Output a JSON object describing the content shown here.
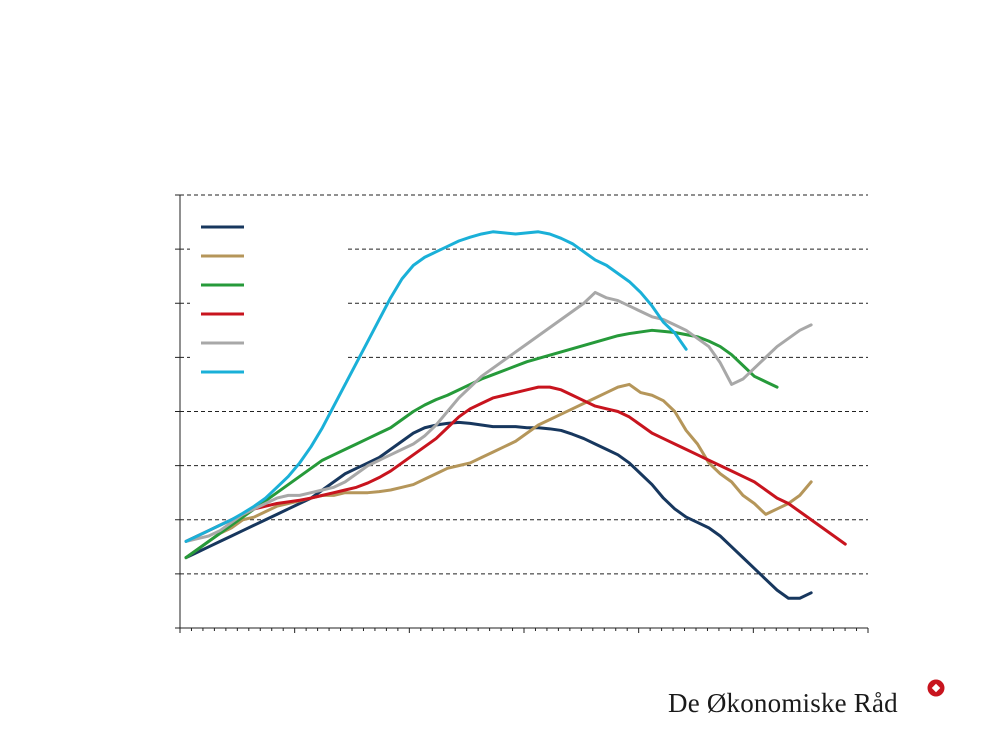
{
  "chart_data": {
    "type": "line",
    "title": "",
    "xlabel": "",
    "ylabel": "",
    "xlim": [
      0,
      60
    ],
    "ylim": [
      0,
      8
    ],
    "grid": true,
    "legend_position": "top-left",
    "series": [
      {
        "name": "",
        "color": "#17375e",
        "values": [
          1.3,
          1.4,
          1.5,
          1.6,
          1.7,
          1.8,
          1.9,
          2.0,
          2.1,
          2.2,
          2.3,
          2.4,
          2.55,
          2.7,
          2.85,
          2.95,
          3.05,
          3.15,
          3.3,
          3.45,
          3.6,
          3.7,
          3.75,
          3.78,
          3.8,
          3.78,
          3.75,
          3.72,
          3.72,
          3.72,
          3.7,
          3.7,
          3.68,
          3.65,
          3.58,
          3.5,
          3.4,
          3.3,
          3.2,
          3.05,
          2.85,
          2.65,
          2.4,
          2.2,
          2.05,
          1.95,
          1.85,
          1.7,
          1.5,
          1.3,
          1.1,
          0.9,
          0.7,
          0.55,
          0.55,
          0.65
        ]
      },
      {
        "name": "",
        "color": "#b5965a",
        "values": [
          1.3,
          1.45,
          1.6,
          1.75,
          1.85,
          2.0,
          2.05,
          2.15,
          2.25,
          2.3,
          2.35,
          2.4,
          2.45,
          2.45,
          2.5,
          2.5,
          2.5,
          2.52,
          2.55,
          2.6,
          2.65,
          2.75,
          2.85,
          2.95,
          3.0,
          3.05,
          3.15,
          3.25,
          3.35,
          3.45,
          3.6,
          3.75,
          3.85,
          3.95,
          4.05,
          4.15,
          4.25,
          4.35,
          4.45,
          4.5,
          4.35,
          4.3,
          4.2,
          4.0,
          3.65,
          3.4,
          3.05,
          2.85,
          2.7,
          2.45,
          2.3,
          2.1,
          2.2,
          2.3,
          2.45,
          2.7
        ]
      },
      {
        "name": "",
        "color": "#269a3a",
        "values": [
          1.3,
          1.45,
          1.6,
          1.75,
          1.9,
          2.05,
          2.2,
          2.35,
          2.5,
          2.65,
          2.8,
          2.95,
          3.1,
          3.2,
          3.3,
          3.4,
          3.5,
          3.6,
          3.7,
          3.85,
          4.0,
          4.12,
          4.22,
          4.3,
          4.4,
          4.5,
          4.6,
          4.68,
          4.76,
          4.84,
          4.92,
          4.98,
          5.04,
          5.1,
          5.16,
          5.22,
          5.28,
          5.34,
          5.4,
          5.44,
          5.47,
          5.5,
          5.48,
          5.46,
          5.42,
          5.38,
          5.3,
          5.2,
          5.05,
          4.85,
          4.65,
          4.55,
          4.45
        ]
      },
      {
        "name": "",
        "color": "#c8141e",
        "values": [
          1.6,
          1.7,
          1.8,
          1.9,
          2.0,
          2.1,
          2.2,
          2.25,
          2.3,
          2.33,
          2.36,
          2.4,
          2.45,
          2.5,
          2.55,
          2.6,
          2.68,
          2.78,
          2.9,
          3.05,
          3.2,
          3.35,
          3.5,
          3.7,
          3.9,
          4.05,
          4.15,
          4.25,
          4.3,
          4.35,
          4.4,
          4.45,
          4.45,
          4.4,
          4.3,
          4.2,
          4.1,
          4.05,
          4.0,
          3.9,
          3.75,
          3.6,
          3.5,
          3.4,
          3.3,
          3.2,
          3.1,
          3.0,
          2.9,
          2.8,
          2.7,
          2.55,
          2.4,
          2.3,
          2.15,
          2.0,
          1.85,
          1.7,
          1.55
        ]
      },
      {
        "name": "",
        "color": "#a8a8a8",
        "values": [
          1.6,
          1.65,
          1.7,
          1.8,
          1.95,
          2.1,
          2.2,
          2.3,
          2.4,
          2.45,
          2.45,
          2.5,
          2.55,
          2.6,
          2.7,
          2.85,
          3.0,
          3.1,
          3.2,
          3.3,
          3.4,
          3.55,
          3.75,
          4.0,
          4.25,
          4.45,
          4.65,
          4.8,
          4.95,
          5.1,
          5.25,
          5.4,
          5.55,
          5.7,
          5.85,
          6.0,
          6.2,
          6.1,
          6.05,
          5.95,
          5.85,
          5.75,
          5.7,
          5.6,
          5.5,
          5.35,
          5.2,
          4.9,
          4.5,
          4.6,
          4.8,
          5.0,
          5.2,
          5.35,
          5.5,
          5.6
        ]
      },
      {
        "name": "",
        "color": "#1ab0d8",
        "values": [
          1.6,
          1.7,
          1.8,
          1.9,
          2.0,
          2.12,
          2.25,
          2.4,
          2.6,
          2.8,
          3.05,
          3.35,
          3.7,
          4.1,
          4.5,
          4.9,
          5.3,
          5.7,
          6.1,
          6.45,
          6.7,
          6.85,
          6.95,
          7.05,
          7.15,
          7.22,
          7.28,
          7.32,
          7.3,
          7.28,
          7.3,
          7.32,
          7.28,
          7.2,
          7.1,
          6.95,
          6.8,
          6.7,
          6.55,
          6.4,
          6.2,
          5.95,
          5.65,
          5.45,
          5.15
        ]
      }
    ]
  },
  "logo": {
    "text": "De Økonomiske Råd"
  }
}
